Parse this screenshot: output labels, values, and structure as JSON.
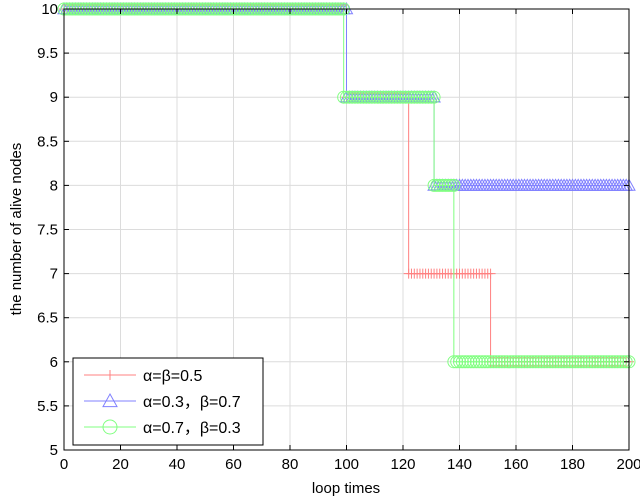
{
  "chart_data": {
    "type": "line",
    "xlabel": "loop times",
    "ylabel": "the number of alive nodes",
    "xlim": [
      0,
      200
    ],
    "ylim": [
      5,
      10
    ],
    "xticks": [
      0,
      20,
      40,
      60,
      80,
      100,
      120,
      140,
      160,
      180,
      200
    ],
    "yticks": [
      5,
      5.5,
      6,
      6.5,
      7,
      7.5,
      8,
      8.5,
      9,
      9.5,
      10
    ],
    "grid": true,
    "legend_position": "bottom-left",
    "series": [
      {
        "name": "α=β=0.5",
        "color": "#ff8080",
        "marker": "plus",
        "steps": [
          [
            0,
            100,
            10
          ],
          [
            100,
            122,
            9
          ],
          [
            122,
            151,
            7
          ],
          [
            151,
            200,
            6
          ]
        ]
      },
      {
        "name": "α=0.3，β=0.7",
        "color": "#8080ff",
        "marker": "triangle",
        "steps": [
          [
            0,
            100,
            10
          ],
          [
            100,
            131,
            9
          ],
          [
            131,
            200,
            8
          ]
        ]
      },
      {
        "name": "α=0.7，β=0.3",
        "color": "#80ff80",
        "marker": "circle",
        "steps": [
          [
            0,
            99,
            10
          ],
          [
            99,
            131,
            9
          ],
          [
            131,
            138,
            8
          ],
          [
            138,
            200,
            6
          ]
        ]
      }
    ]
  }
}
